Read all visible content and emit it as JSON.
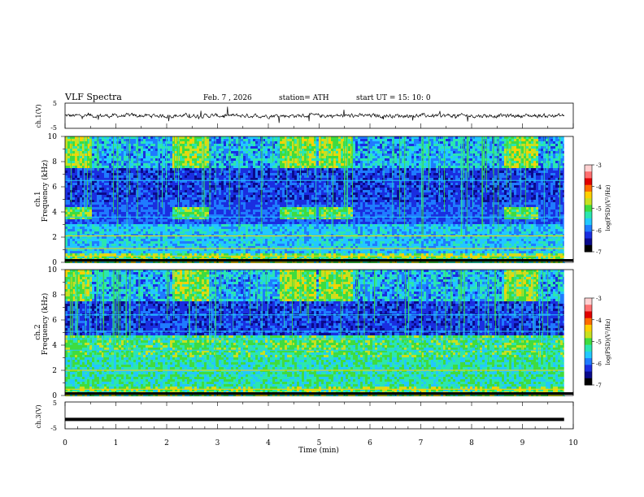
{
  "header": {
    "title": "VLF Spectra",
    "date": "Feb. 7 , 2026",
    "station": "station= ATH",
    "start": "start UT = 15: 10: 0"
  },
  "panels": {
    "ch1_label": "ch.1(V)",
    "ch3_label": "ch.3(V)",
    "ch1_spec_label": "ch.1",
    "ch2_spec_label": "ch.2",
    "freq_label": "Frequency (kHz)",
    "colorbar_label": "log(PSD)(V²/Hz)"
  },
  "x_axis": {
    "label": "Time (min)",
    "ticks": [
      "0",
      "1",
      "2",
      "3",
      "4",
      "5",
      "6",
      "7",
      "8",
      "9",
      "10"
    ]
  },
  "colors": {
    "palette": [
      "#000000",
      "#0a0a8c",
      "#1a2ee0",
      "#1f7bff",
      "#22c8ff",
      "#2be6b0",
      "#3fdc3f",
      "#c8e020",
      "#ffd000",
      "#ff6a00",
      "#e00000",
      "#ff9090"
    ]
  },
  "chart_data": [
    {
      "type": "line",
      "title": "ch.1(V)",
      "ylabel": "ch.1(V)",
      "xlim": [
        0,
        10
      ],
      "ylim": [
        -5,
        5
      ],
      "y_ticks": [
        "5",
        "-5"
      ],
      "description_values": {
        "baseline": 0,
        "data_end_min": 9.82
      }
    },
    {
      "type": "heatmap",
      "title": "ch.1",
      "xlabel": "Time (min)",
      "ylabel": "Frequency (kHz)",
      "xlim": [
        0,
        10
      ],
      "ylim": [
        0,
        10
      ],
      "y_ticks": [
        "0",
        "2",
        "4",
        "6",
        "8",
        "10"
      ],
      "colorbar": {
        "label": "log(PSD)(V²/Hz)",
        "range": [
          -7,
          -3
        ],
        "ticks": [
          "-3",
          "-4",
          "-5",
          "-6",
          "-7"
        ]
      },
      "data_end_min": 9.82,
      "bursts_min": [
        0.15,
        2.45,
        4.55,
        5.3,
        8.95
      ]
    },
    {
      "type": "heatmap",
      "title": "ch.2",
      "xlabel": "Time (min)",
      "ylabel": "Frequency (kHz)",
      "xlim": [
        0,
        10
      ],
      "ylim": [
        0,
        10
      ],
      "y_ticks": [
        "0",
        "2",
        "4",
        "6",
        "8",
        "10"
      ],
      "colorbar": {
        "label": "log(PSD)(V²/Hz)",
        "range": [
          -7,
          -3
        ],
        "ticks": [
          "-3",
          "-4",
          "-5",
          "-6",
          "-7"
        ]
      },
      "data_end_min": 9.82,
      "bursts_min": [
        0.15,
        2.45,
        4.55,
        5.3,
        8.95
      ]
    },
    {
      "type": "line",
      "title": "ch.3(V)",
      "ylabel": "ch.3(V)",
      "xlabel": "Time (min)",
      "xlim": [
        0,
        10
      ],
      "ylim": [
        -5,
        5
      ],
      "y_ticks": [
        "5",
        "-5"
      ],
      "description_values": {
        "baseline": -1.5,
        "data_end_min": 9.82
      }
    }
  ]
}
